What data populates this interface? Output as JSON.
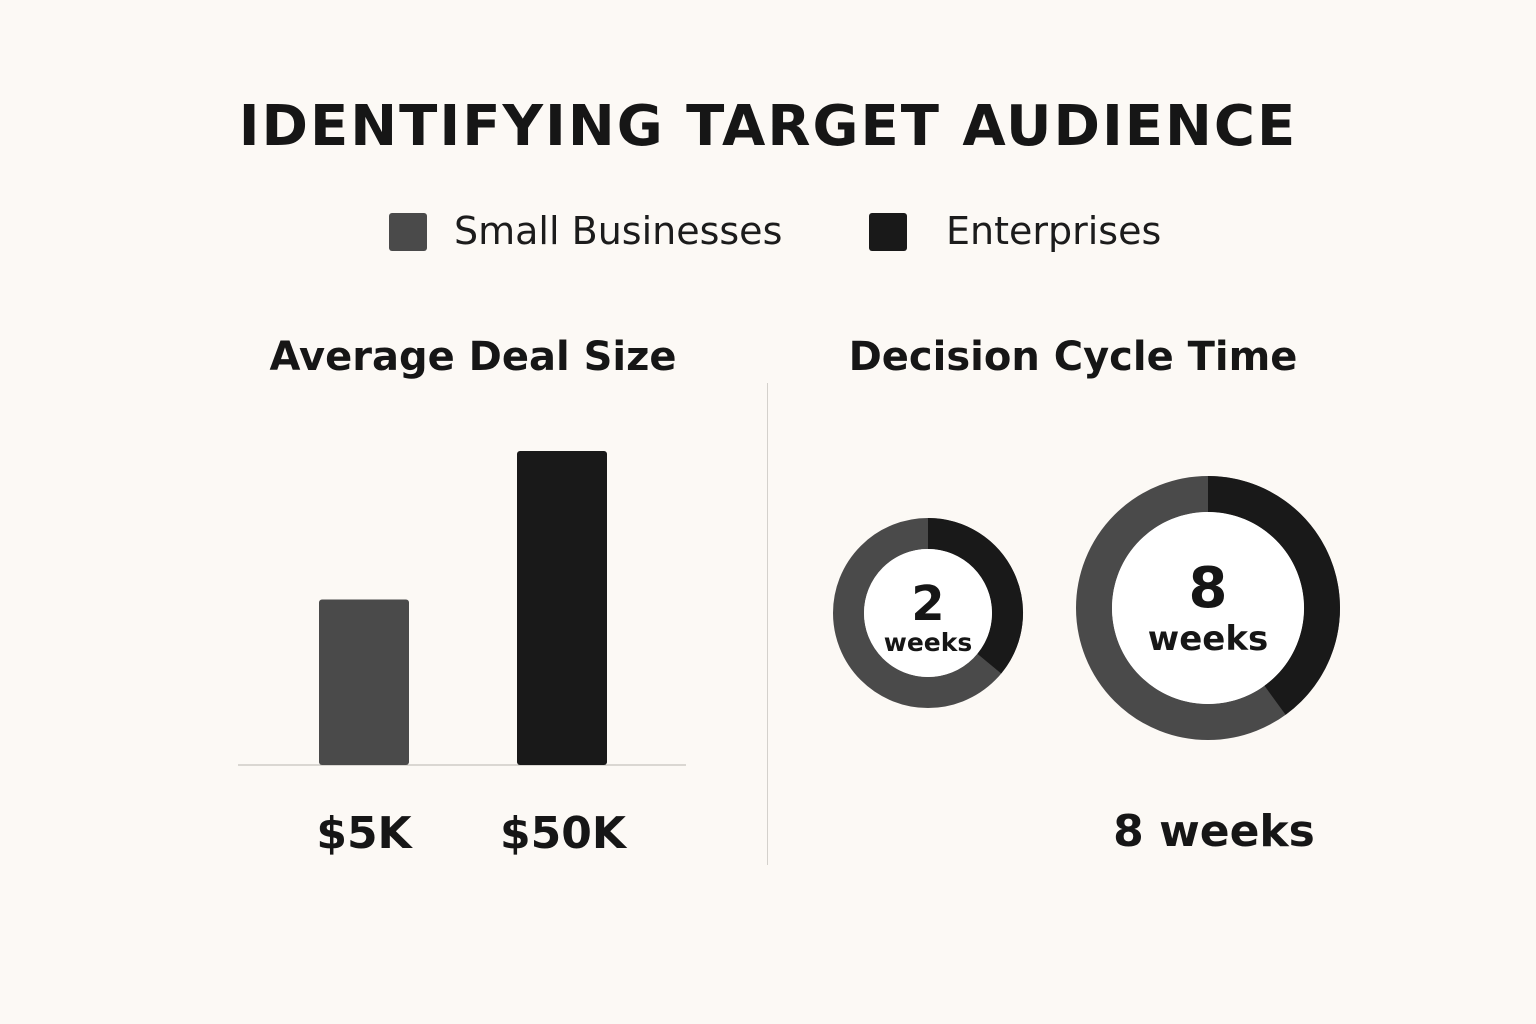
{
  "chart_data": {
    "title": "IDENTIFYING TARGET AUDIENCE",
    "legend": [
      {
        "label": "Small Businesses",
        "color": "#4a4a4a"
      },
      {
        "label": "Enterprises",
        "color": "#191919"
      }
    ],
    "panels": [
      {
        "type": "bar",
        "title": "Average Deal Size",
        "categories": [
          "Small Businesses",
          "Enterprises"
        ],
        "values": [
          5000,
          50000
        ],
        "value_labels": [
          "$5K",
          "$50K"
        ]
      },
      {
        "type": "donut",
        "title": "Decision Cycle Time",
        "categories": [
          "Small Businesses",
          "Enterprises"
        ],
        "values": [
          2,
          8
        ],
        "unit": "weeks",
        "caption": "8 weeks"
      }
    ]
  }
}
